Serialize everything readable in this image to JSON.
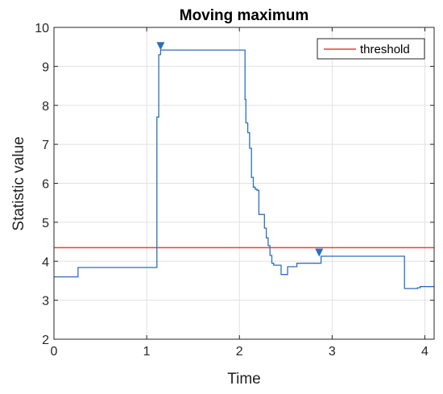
{
  "chart_data": {
    "type": "line",
    "title": "Moving maximum",
    "xlabel": "Time",
    "ylabel": "Statistic value",
    "xlim": [
      0,
      4.1
    ],
    "ylim": [
      2,
      10
    ],
    "xticks": [
      0,
      1,
      2,
      3,
      4
    ],
    "yticks": [
      2,
      3,
      4,
      5,
      6,
      7,
      8,
      9,
      10
    ],
    "grid": true,
    "legend_position": "top-right",
    "legend": [
      "threshold"
    ],
    "threshold": {
      "name": "threshold",
      "y": 4.35,
      "color": "#e8413c"
    },
    "series": [
      {
        "color": "#2c6fbb",
        "x": [
          0,
          0.26,
          0.26,
          1.11,
          1.11,
          1.13,
          1.13,
          1.15,
          1.15,
          2.06,
          2.06,
          2.07,
          2.07,
          2.09,
          2.09,
          2.11,
          2.11,
          2.13,
          2.13,
          2.15,
          2.15,
          2.17,
          2.17,
          2.19,
          2.19,
          2.21,
          2.21,
          2.27,
          2.27,
          2.29,
          2.29,
          2.31,
          2.31,
          2.33,
          2.33,
          2.35,
          2.35,
          2.37,
          2.37,
          2.45,
          2.45,
          2.52,
          2.52,
          2.62,
          2.62,
          2.88,
          2.88,
          3.78,
          3.78,
          3.92,
          3.92,
          3.95,
          3.95,
          4.1
        ],
        "y": [
          3.6,
          3.6,
          3.84,
          3.84,
          7.7,
          7.7,
          9.3,
          9.3,
          9.42,
          9.42,
          8.15,
          8.15,
          7.55,
          7.55,
          7.3,
          7.3,
          6.9,
          6.9,
          6.15,
          6.15,
          5.9,
          5.9,
          5.85,
          5.85,
          5.82,
          5.82,
          5.2,
          5.2,
          4.85,
          4.85,
          4.6,
          4.6,
          4.4,
          4.4,
          4.15,
          4.15,
          3.95,
          3.95,
          3.9,
          3.9,
          3.66,
          3.66,
          3.86,
          3.86,
          3.95,
          3.95,
          4.13,
          4.13,
          3.3,
          3.3,
          3.32,
          3.32,
          3.35,
          3.35
        ]
      }
    ],
    "markers": [
      {
        "x": 1.15,
        "y": 9.52,
        "color": "#2c6fbb"
      },
      {
        "x": 2.86,
        "y": 4.22,
        "color": "#2c6fbb"
      }
    ]
  }
}
